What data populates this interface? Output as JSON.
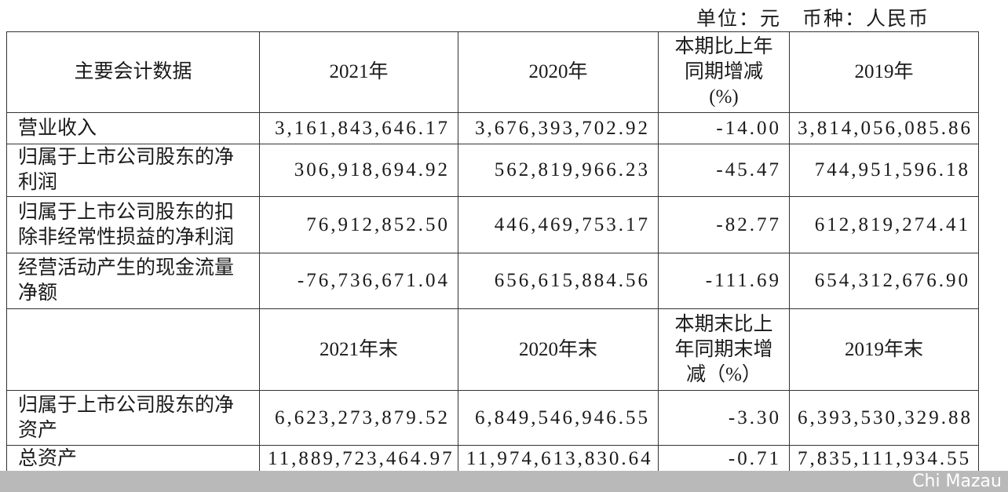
{
  "unit_note": "单位：元　币种：人民币",
  "table": {
    "rows": [
      [
        [
          "主要会计数据"
        ],
        [
          "2021年"
        ],
        [
          "2020年"
        ],
        [
          "本期比上年",
          "同期增减",
          "(%)"
        ],
        [
          "2019年"
        ]
      ],
      [
        [
          "营业收入"
        ],
        [
          "3,161,843,646.17"
        ],
        [
          "3,676,393,702.92"
        ],
        [
          "-14.00"
        ],
        [
          "3,814,056,085.86"
        ]
      ],
      [
        [
          "归属于上市公司股东的净",
          "利润"
        ],
        [
          "306,918,694.92"
        ],
        [
          "562,819,966.23"
        ],
        [
          "-45.47"
        ],
        [
          "744,951,596.18"
        ]
      ],
      [
        [
          "归属于上市公司股东的扣",
          "除非经常性损益的净利润"
        ],
        [
          "76,912,852.50"
        ],
        [
          "446,469,753.17"
        ],
        [
          "-82.77"
        ],
        [
          "612,819,274.41"
        ]
      ],
      [
        [
          "经营活动产生的现金流量",
          "净额"
        ],
        [
          "-76,736,671.04"
        ],
        [
          "656,615,884.56"
        ],
        [
          "-111.69"
        ],
        [
          "654,312,676.90"
        ]
      ],
      [
        [],
        [
          "2021年末"
        ],
        [
          "2020年末"
        ],
        [
          "本期末比上",
          "年同期末增",
          "减（%）"
        ],
        [
          "2019年末"
        ]
      ],
      [
        [
          "归属于上市公司股东的净",
          "资产"
        ],
        [
          "6,623,273,879.52"
        ],
        [
          "6,849,546,946.55"
        ],
        [
          "-3.30"
        ],
        [
          "6,393,530,329.88"
        ]
      ],
      [
        [
          "总资产"
        ],
        [
          "11,889,723,464.97"
        ],
        [
          "11,974,613,830.64"
        ],
        [
          "-0.71"
        ],
        [
          "7,835,111,934.55"
        ]
      ]
    ]
  },
  "watermark": "Chi Mazau"
}
